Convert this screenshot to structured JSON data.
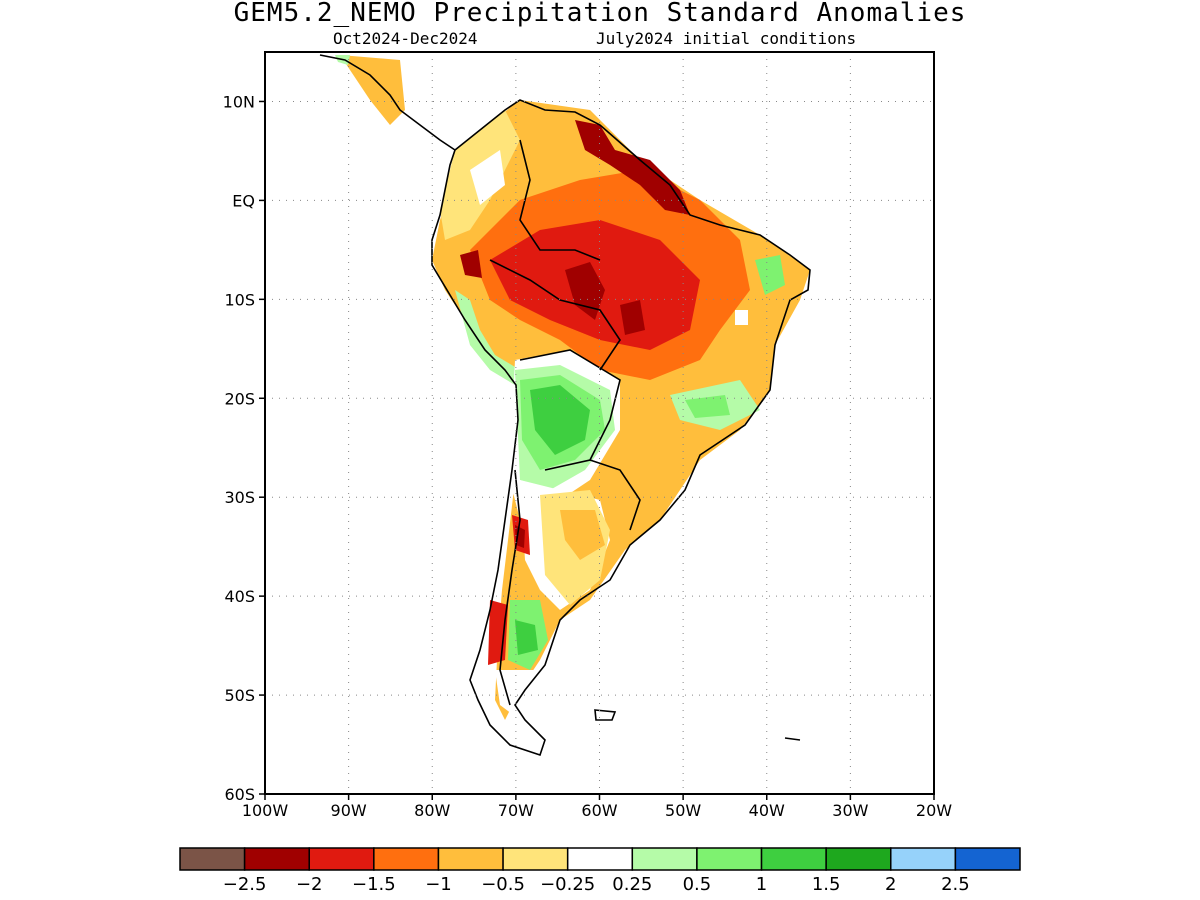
{
  "header": {
    "title": "GEM5.2_NEMO Precipitation Standard Anomalies",
    "period": "Oct2024-Dec2024",
    "init": "July2024 initial conditions"
  },
  "axes": {
    "lat_labels": [
      "10N",
      "EQ",
      "10S",
      "20S",
      "30S",
      "40S",
      "50S",
      "60S"
    ],
    "lon_labels": [
      "100W",
      "90W",
      "80W",
      "70W",
      "60W",
      "50W",
      "40W",
      "30W",
      "20W"
    ],
    "lat_range": [
      -60,
      15
    ],
    "lon_range": [
      -100,
      -20
    ],
    "grid": "dotted"
  },
  "colorbar": {
    "labels": [
      "-2.5",
      "-2",
      "-1.5",
      "-1",
      "-0.5",
      "-0.25",
      "0.25",
      "0.5",
      "1",
      "1.5",
      "2",
      "2.5"
    ],
    "colors": [
      "#7b5447",
      "#a00000",
      "#e01a10",
      "#ff6f0f",
      "#ffbe3c",
      "#ffe47a",
      "#ffffff",
      "#b5fba8",
      "#7ef270",
      "#3ecf40",
      "#1ea81e",
      "#96d2fa",
      "#1464d2"
    ]
  },
  "map": {
    "region": "South America",
    "variable": "Precipitation standard anomaly"
  }
}
